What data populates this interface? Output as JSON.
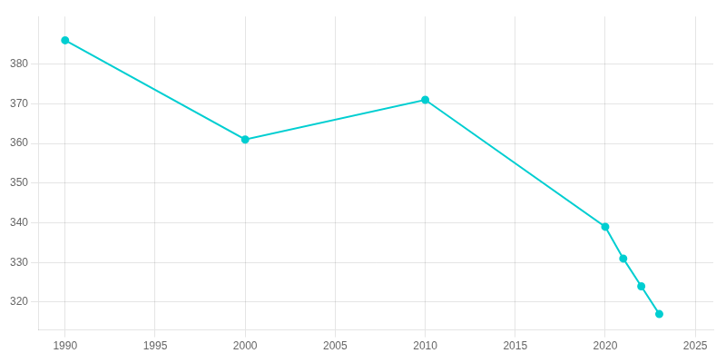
{
  "chart_data": {
    "type": "line",
    "x": [
      1990,
      2000,
      2010,
      2020,
      2021,
      2022,
      2023
    ],
    "values": [
      386,
      361,
      371,
      339,
      331,
      324,
      317
    ],
    "color": "#00CED1",
    "marker": "circle",
    "xlim": [
      1988.5,
      2026
    ],
    "xticks": [
      1990,
      1995,
      2000,
      2005,
      2010,
      2015,
      2020,
      2025
    ],
    "ylim": [
      313,
      392
    ],
    "yticks": [
      320,
      330,
      340,
      350,
      360,
      370,
      380
    ],
    "grid": true
  }
}
